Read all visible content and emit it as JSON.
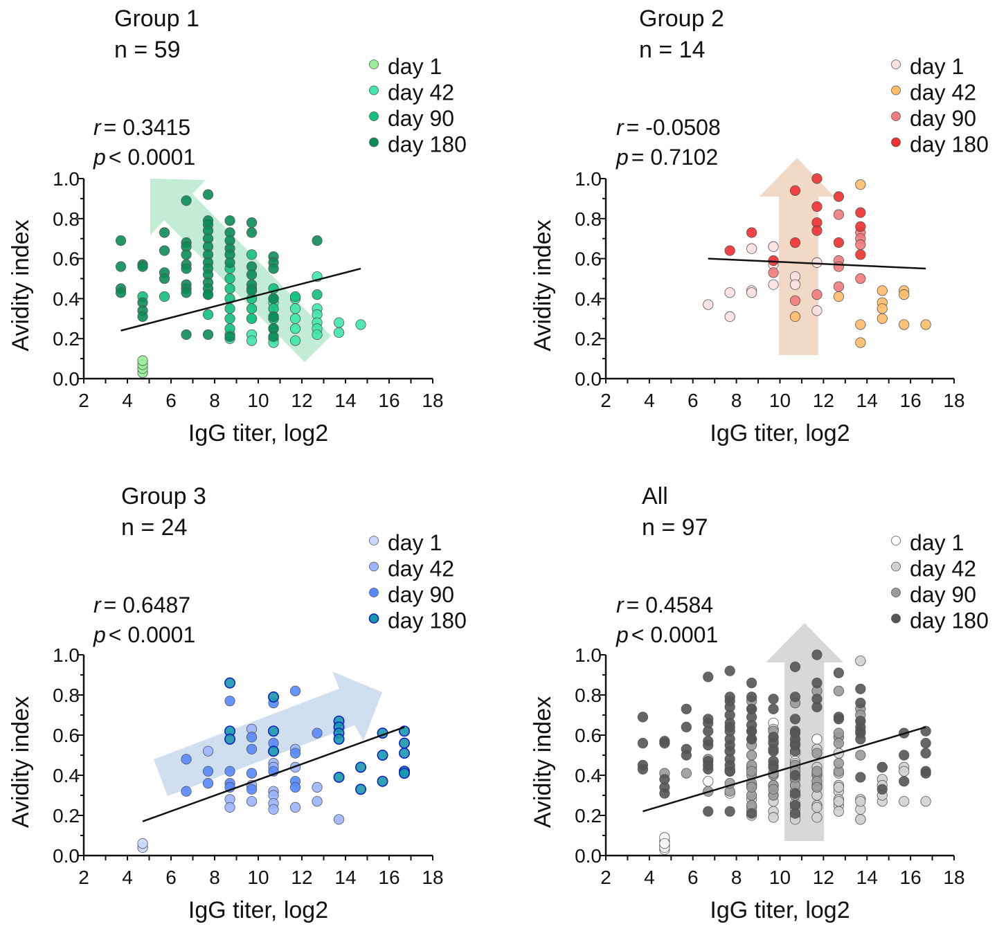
{
  "chart_data": [
    {
      "type": "scatter",
      "title": "Group 1",
      "n_label": "n = 59",
      "r_label": "r",
      "r_value": "= 0.3415",
      "p_label": "p",
      "p_value": "< 0.0001",
      "xlabel": "IgG titer, log2",
      "ylabel": "Avidity index",
      "xlim": [
        2,
        18
      ],
      "ylim": [
        0,
        1.0
      ],
      "xticks": [
        "2",
        "4",
        "6",
        "8",
        "10",
        "12",
        "14",
        "16",
        "18"
      ],
      "yticks": [
        "0.0",
        "0.2",
        "0.4",
        "0.6",
        "0.8",
        "1.0"
      ],
      "legend_position": "top-right",
      "regression": [
        [
          3.7,
          0.24
        ],
        [
          14.7,
          0.55
        ]
      ],
      "series": [
        {
          "name": "day 1",
          "color": "#98f098",
          "points": [
            [
              4.7,
              0.03
            ],
            [
              4.7,
              0.05
            ],
            [
              4.7,
              0.07
            ],
            [
              4.7,
              0.09
            ]
          ]
        },
        {
          "name": "day 42",
          "color": "#3fe6ac",
          "points": [
            [
              12.7,
              0.51
            ],
            [
              12.7,
              0.35
            ],
            [
              12.7,
              0.32
            ],
            [
              12.7,
              0.28
            ],
            [
              12.7,
              0.25
            ],
            [
              12.7,
              0.22
            ],
            [
              13.7,
              0.28
            ],
            [
              13.7,
              0.23
            ],
            [
              14.7,
              0.27
            ],
            [
              11.7,
              0.4
            ],
            [
              11.7,
              0.35
            ],
            [
              11.7,
              0.3
            ],
            [
              11.7,
              0.25
            ],
            [
              11.7,
              0.19
            ],
            [
              10.7,
              0.38
            ],
            [
              10.7,
              0.3
            ],
            [
              10.7,
              0.25
            ],
            [
              10.7,
              0.2
            ],
            [
              10.7,
              0.18
            ],
            [
              9.7,
              0.3
            ],
            [
              9.7,
              0.22
            ],
            [
              9.7,
              0.19
            ],
            [
              8.7,
              0.2
            ],
            [
              8.7,
              0.22
            ]
          ]
        },
        {
          "name": "day 90",
          "color": "#12c07e",
          "points": [
            [
              8.7,
              0.55
            ],
            [
              8.7,
              0.5
            ],
            [
              8.7,
              0.45
            ],
            [
              8.7,
              0.4
            ],
            [
              8.7,
              0.35
            ],
            [
              8.7,
              0.3
            ],
            [
              8.7,
              0.25
            ],
            [
              9.7,
              0.62
            ],
            [
              9.7,
              0.45
            ],
            [
              9.7,
              0.4
            ],
            [
              9.7,
              0.35
            ],
            [
              9.7,
              0.3
            ],
            [
              10.7,
              0.45
            ],
            [
              10.7,
              0.4
            ],
            [
              10.7,
              0.35
            ],
            [
              10.7,
              0.3
            ],
            [
              10.7,
              0.25
            ],
            [
              7.7,
              0.32
            ],
            [
              7.7,
              0.42
            ],
            [
              4.7,
              0.41
            ],
            [
              5.7,
              0.41
            ],
            [
              12.7,
              0.42
            ],
            [
              11.7,
              0.41
            ]
          ]
        },
        {
          "name": "day 180",
          "color": "#0a8c58",
          "points": [
            [
              3.7,
              0.69
            ],
            [
              3.7,
              0.56
            ],
            [
              3.7,
              0.45
            ],
            [
              3.7,
              0.43
            ],
            [
              4.7,
              0.57
            ],
            [
              4.7,
              0.56
            ],
            [
              4.7,
              0.38
            ],
            [
              4.7,
              0.34
            ],
            [
              4.7,
              0.31
            ],
            [
              5.7,
              0.73
            ],
            [
              5.7,
              0.64
            ],
            [
              5.7,
              0.53
            ],
            [
              5.7,
              0.5
            ],
            [
              6.7,
              0.89
            ],
            [
              6.7,
              0.68
            ],
            [
              6.7,
              0.66
            ],
            [
              6.7,
              0.62
            ],
            [
              6.7,
              0.57
            ],
            [
              6.7,
              0.55
            ],
            [
              6.7,
              0.47
            ],
            [
              6.7,
              0.45
            ],
            [
              6.7,
              0.43
            ],
            [
              6.7,
              0.22
            ],
            [
              7.7,
              0.92
            ],
            [
              7.7,
              0.79
            ],
            [
              7.7,
              0.77
            ],
            [
              7.7,
              0.74
            ],
            [
              7.7,
              0.7
            ],
            [
              7.7,
              0.66
            ],
            [
              7.7,
              0.62
            ],
            [
              7.7,
              0.58
            ],
            [
              7.7,
              0.55
            ],
            [
              7.7,
              0.52
            ],
            [
              7.7,
              0.48
            ],
            [
              7.7,
              0.45
            ],
            [
              7.7,
              0.42
            ],
            [
              7.7,
              0.22
            ],
            [
              8.7,
              0.79
            ],
            [
              8.7,
              0.73
            ],
            [
              8.7,
              0.69
            ],
            [
              8.7,
              0.65
            ],
            [
              8.7,
              0.62
            ],
            [
              8.7,
              0.58
            ],
            [
              8.7,
              0.21
            ],
            [
              9.7,
              0.78
            ],
            [
              9.7,
              0.73
            ],
            [
              9.7,
              0.56
            ],
            [
              9.7,
              0.52
            ],
            [
              9.7,
              0.47
            ],
            [
              9.7,
              0.44
            ],
            [
              10.7,
              0.61
            ],
            [
              10.7,
              0.58
            ],
            [
              10.7,
              0.55
            ],
            [
              10.7,
              0.4
            ],
            [
              10.7,
              0.31
            ],
            [
              10.7,
              0.25
            ],
            [
              10.7,
              0.21
            ],
            [
              12.7,
              0.69
            ]
          ]
        }
      ]
    },
    {
      "type": "scatter",
      "title": "Group 2",
      "n_label": "n = 14",
      "r_label": "r",
      "r_value": "= -0.0508",
      "p_label": "p",
      "p_value": "= 0.7102",
      "xlabel": "IgG titer, log2",
      "ylabel": "Avidity index",
      "xlim": [
        2,
        18
      ],
      "ylim": [
        0,
        1.0
      ],
      "xticks": [
        "2",
        "4",
        "6",
        "8",
        "10",
        "12",
        "14",
        "16",
        "18"
      ],
      "yticks": [
        "0.0",
        "0.2",
        "0.4",
        "0.6",
        "0.8",
        "1.0"
      ],
      "legend_position": "top-right",
      "regression": [
        [
          6.7,
          0.6
        ],
        [
          16.7,
          0.55
        ]
      ],
      "series": [
        {
          "name": "day 1",
          "color": "#fde0e0",
          "points": [
            [
              6.7,
              0.37
            ],
            [
              7.7,
              0.43
            ],
            [
              7.7,
              0.31
            ],
            [
              8.7,
              0.44
            ],
            [
              8.7,
              0.43
            ],
            [
              8.7,
              0.65
            ],
            [
              9.7,
              0.66
            ],
            [
              9.7,
              0.57
            ],
            [
              9.7,
              0.47
            ],
            [
              10.7,
              0.51
            ],
            [
              10.7,
              0.47
            ],
            [
              11.7,
              0.58
            ],
            [
              11.7,
              0.34
            ]
          ]
        },
        {
          "name": "day 42",
          "color": "#ffbb6a",
          "points": [
            [
              10.7,
              0.31
            ],
            [
              12.7,
              0.41
            ],
            [
              13.7,
              0.97
            ],
            [
              13.7,
              0.27
            ],
            [
              13.7,
              0.18
            ],
            [
              14.7,
              0.44
            ],
            [
              14.7,
              0.38
            ],
            [
              14.7,
              0.35
            ],
            [
              14.7,
              0.3
            ],
            [
              15.7,
              0.44
            ],
            [
              15.7,
              0.42
            ],
            [
              15.7,
              0.27
            ],
            [
              16.7,
              0.27
            ]
          ]
        },
        {
          "name": "day 90",
          "color": "#f27a7a",
          "points": [
            [
              9.7,
              0.53
            ],
            [
              10.7,
              0.39
            ],
            [
              11.7,
              0.42
            ],
            [
              12.7,
              0.82
            ],
            [
              12.7,
              0.59
            ],
            [
              12.7,
              0.56
            ],
            [
              12.7,
              0.46
            ],
            [
              13.7,
              0.73
            ],
            [
              13.7,
              0.7
            ],
            [
              13.7,
              0.67
            ],
            [
              13.7,
              0.5
            ]
          ]
        },
        {
          "name": "day 180",
          "color": "#ee3030",
          "points": [
            [
              7.7,
              0.64
            ],
            [
              8.7,
              0.73
            ],
            [
              9.7,
              0.59
            ],
            [
              10.7,
              0.94
            ],
            [
              10.7,
              0.68
            ],
            [
              11.7,
              1.0
            ],
            [
              11.7,
              0.86
            ],
            [
              11.7,
              0.78
            ],
            [
              11.7,
              0.74
            ],
            [
              12.7,
              0.91
            ],
            [
              12.7,
              0.68
            ],
            [
              13.7,
              0.83
            ],
            [
              13.7,
              0.76
            ],
            [
              13.7,
              0.62
            ]
          ]
        }
      ]
    },
    {
      "type": "scatter",
      "title": "Group 3",
      "n_label": "n = 24",
      "r_label": "r",
      "r_value": "= 0.6487",
      "p_label": "p",
      "p_value": "< 0.0001",
      "xlabel": "IgG titer, log2",
      "ylabel": "Avidity index",
      "xlim": [
        2,
        18
      ],
      "ylim": [
        0,
        1.0
      ],
      "xticks": [
        "2",
        "4",
        "6",
        "8",
        "10",
        "12",
        "14",
        "16",
        "18"
      ],
      "yticks": [
        "0.0",
        "0.2",
        "0.4",
        "0.6",
        "0.8",
        "1.0"
      ],
      "legend_position": "top-right",
      "regression": [
        [
          4.7,
          0.17
        ],
        [
          16.7,
          0.64
        ]
      ],
      "series": [
        {
          "name": "day 1",
          "color": "#c8d8ff",
          "points": [
            [
              4.7,
              0.04
            ],
            [
              4.7,
              0.06
            ]
          ]
        },
        {
          "name": "day 42",
          "color": "#9ab4ff",
          "points": [
            [
              7.7,
              0.52
            ],
            [
              8.7,
              0.28
            ],
            [
              8.7,
              0.24
            ],
            [
              9.7,
              0.63
            ],
            [
              9.7,
              0.35
            ],
            [
              9.7,
              0.27
            ],
            [
              10.7,
              0.46
            ],
            [
              10.7,
              0.44
            ],
            [
              10.7,
              0.32
            ],
            [
              10.7,
              0.3
            ],
            [
              10.7,
              0.26
            ],
            [
              10.7,
              0.23
            ],
            [
              11.7,
              0.53
            ],
            [
              11.7,
              0.44
            ],
            [
              11.7,
              0.24
            ],
            [
              12.7,
              0.34
            ],
            [
              12.7,
              0.27
            ],
            [
              13.7,
              0.18
            ]
          ]
        },
        {
          "name": "day 90",
          "color": "#5588ff",
          "points": [
            [
              6.7,
              0.48
            ],
            [
              6.7,
              0.32
            ],
            [
              7.7,
              0.42
            ],
            [
              7.7,
              0.36
            ],
            [
              8.7,
              0.77
            ],
            [
              8.7,
              0.42
            ],
            [
              8.7,
              0.36
            ],
            [
              8.7,
              0.34
            ],
            [
              9.7,
              0.59
            ],
            [
              9.7,
              0.53
            ],
            [
              9.7,
              0.41
            ],
            [
              9.7,
              0.33
            ],
            [
              10.7,
              0.76
            ],
            [
              10.7,
              0.56
            ],
            [
              10.7,
              0.42
            ],
            [
              11.7,
              0.82
            ],
            [
              11.7,
              0.51
            ],
            [
              11.7,
              0.37
            ],
            [
              11.7,
              0.34
            ],
            [
              12.7,
              0.61
            ]
          ]
        },
        {
          "name": "day 180",
          "color": "#1898ac",
          "stroke": "#1020c0",
          "points": [
            [
              8.7,
              0.86
            ],
            [
              8.7,
              0.62
            ],
            [
              8.7,
              0.58
            ],
            [
              10.7,
              0.79
            ],
            [
              10.7,
              0.62
            ],
            [
              10.7,
              0.52
            ],
            [
              13.7,
              0.67
            ],
            [
              13.7,
              0.64
            ],
            [
              13.7,
              0.61
            ],
            [
              13.7,
              0.58
            ],
            [
              13.7,
              0.39
            ],
            [
              14.7,
              0.44
            ],
            [
              14.7,
              0.33
            ],
            [
              15.7,
              0.61
            ],
            [
              15.7,
              0.5
            ],
            [
              15.7,
              0.37
            ],
            [
              16.7,
              0.62
            ],
            [
              16.7,
              0.56
            ],
            [
              16.7,
              0.51
            ],
            [
              16.7,
              0.42
            ],
            [
              16.7,
              0.41
            ]
          ]
        }
      ]
    },
    {
      "type": "scatter",
      "title": "All",
      "n_label": "n = 97",
      "r_label": "r",
      "r_value": "= 0.4584",
      "p_label": "p",
      "p_value": "< 0.0001",
      "xlabel": "IgG titer, log2",
      "ylabel": "Avidity index",
      "xlim": [
        2,
        18
      ],
      "ylim": [
        0,
        1.0
      ],
      "xticks": [
        "2",
        "4",
        "6",
        "8",
        "10",
        "12",
        "14",
        "16",
        "18"
      ],
      "yticks": [
        "0.0",
        "0.2",
        "0.4",
        "0.6",
        "0.8",
        "1.0"
      ],
      "legend_position": "top-right",
      "regression": [
        [
          3.7,
          0.22
        ],
        [
          16.7,
          0.64
        ]
      ],
      "points_from_groups": [
        0,
        1,
        2
      ],
      "series": [
        {
          "name": "day 1",
          "color": "#ffffff"
        },
        {
          "name": "day 42",
          "color": "#d2d2d2"
        },
        {
          "name": "day 90",
          "color": "#9a9a9a"
        },
        {
          "name": "day 180",
          "color": "#555555"
        }
      ]
    }
  ]
}
